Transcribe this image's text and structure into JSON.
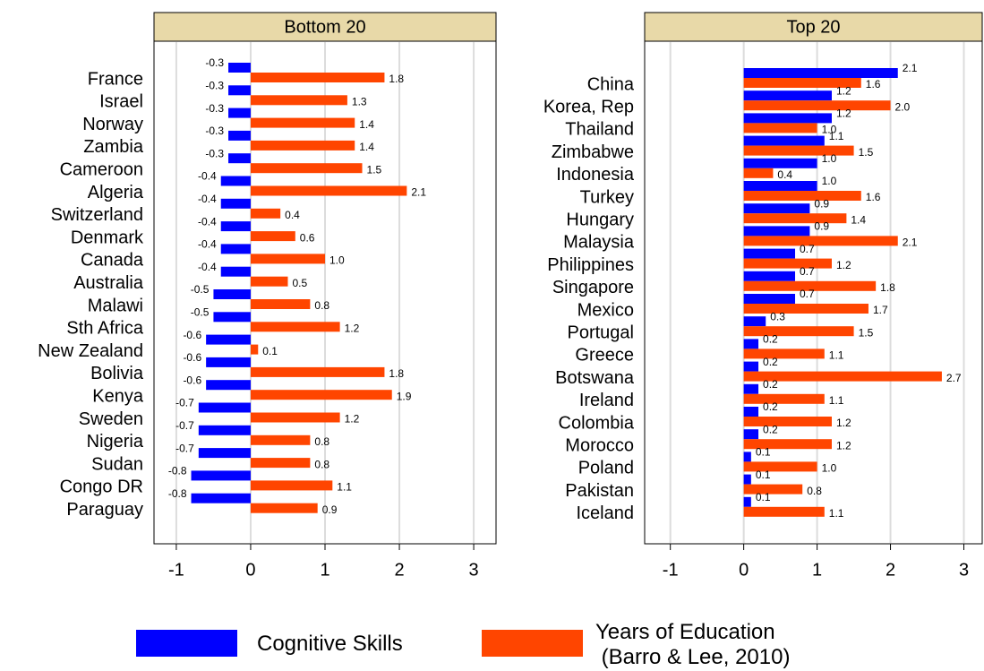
{
  "chart_data": [
    {
      "type": "bar",
      "orientation": "horizontal",
      "title": "Bottom 20",
      "categories": [
        "France",
        "Israel",
        "Norway",
        "Zambia",
        "Cameroon",
        "Algeria",
        "Switzerland",
        "Denmark",
        "Canada",
        "Australia",
        "Malawi",
        "Sth Africa",
        "New Zealand",
        "Bolivia",
        "Kenya",
        "Sweden",
        "Nigeria",
        "Sudan",
        "Congo DR",
        "Paraguay"
      ],
      "series": [
        {
          "name": "Cognitive Skills",
          "color": "#0000ff",
          "values": [
            -0.3,
            -0.3,
            -0.3,
            -0.3,
            -0.3,
            -0.4,
            -0.4,
            -0.4,
            -0.4,
            -0.4,
            -0.5,
            -0.5,
            -0.6,
            -0.6,
            -0.6,
            -0.7,
            -0.7,
            -0.7,
            -0.8,
            -0.8
          ]
        },
        {
          "name": "Years of Education\n (Barro & Lee, 2010)",
          "color": "#ff4500",
          "values": [
            1.8,
            1.3,
            1.4,
            1.4,
            1.5,
            2.1,
            0.4,
            0.6,
            1,
            0.5,
            0.8,
            1.2,
            0.1,
            1.8,
            1.9,
            1.2,
            0.8,
            0.8,
            1.1,
            0.9
          ],
          "value_labels": [
            "1.8",
            "1.3",
            "1.4",
            "1.4",
            "1.5",
            "2.1",
            "0.4",
            "0.6",
            "1.0",
            "0.5",
            "0.8",
            "1.2",
            "0.1",
            "1.8",
            "1.9",
            "1.2",
            "0.8",
            "0.8",
            "1.1",
            "0.9"
          ]
        }
      ],
      "xlim": [
        -1.3,
        3.3
      ],
      "xticks": [
        -1,
        0,
        1,
        2,
        3
      ],
      "grid": true
    },
    {
      "type": "bar",
      "orientation": "horizontal",
      "title": "Top 20",
      "categories": [
        "China",
        "Korea, Rep",
        "Thailand",
        "Zimbabwe",
        "Indonesia",
        "Turkey",
        "Hungary",
        "Malaysia",
        "Philippines",
        "Singapore",
        "Mexico",
        "Portugal",
        "Greece",
        "Botswana",
        "Ireland",
        "Colombia",
        "Morocco",
        "Poland",
        "Pakistan",
        "Iceland"
      ],
      "series": [
        {
          "color": "#0000ff",
          "values": [
            2.1,
            1.2,
            1.2,
            1.1,
            1,
            1,
            0.9,
            0.9,
            0.7,
            0.7,
            0.7,
            0.3,
            0.2,
            0.2,
            0.2,
            0.2,
            0.2,
            0.1,
            0.1,
            0.1
          ],
          "value_labels": [
            "2.1",
            "1.2",
            "1.2",
            "1.1",
            "1.0",
            "1.0",
            "0.9",
            "0.9",
            "0.7",
            "0.7",
            "0.7",
            "0.3",
            "0.2",
            "0.2",
            "0.2",
            "0.2",
            "0.2",
            "0.1",
            "0.1",
            "0.1"
          ]
        },
        {
          "color": "#ff4500",
          "values": [
            1.6,
            2,
            1,
            1.5,
            0.4,
            1.6,
            1.4,
            2.1,
            1.2,
            1.8,
            1.7,
            1.5,
            1.1,
            2.7,
            1.1,
            1.2,
            1.2,
            1,
            0.8,
            1.1
          ],
          "value_labels": [
            "1.6",
            "2.0",
            "1.0",
            "1.5",
            "0.4",
            "1.6",
            "1.4",
            "2.1",
            "1.2",
            "1.8",
            "1.7",
            "1.5",
            "1.1",
            "2.7",
            "1.1",
            "1.2",
            "1.2",
            "1.0",
            "0.8",
            "1.1"
          ]
        }
      ],
      "xlim": [
        -1.35,
        3.25
      ],
      "xticks": [
        -1,
        0,
        1,
        2,
        3
      ],
      "grid": true
    }
  ]
}
